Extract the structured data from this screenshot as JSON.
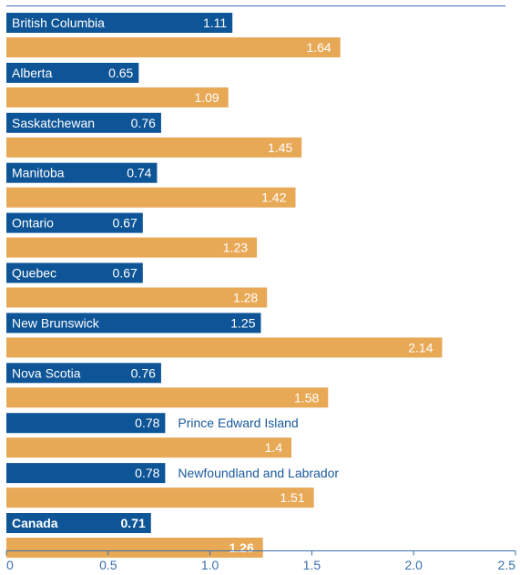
{
  "chart_data": {
    "type": "bar",
    "orientation": "horizontal",
    "categories": [
      "British Columbia",
      "Alberta",
      "Saskatchewan",
      "Manitoba",
      "Ontario",
      "Quebec",
      "New Brunswick",
      "Nova Scotia",
      "Prince Edward Island",
      "Newfoundland and Labrador",
      "Canada"
    ],
    "series": [
      {
        "values": [
          1.11,
          0.65,
          0.76,
          0.74,
          0.67,
          0.67,
          1.25,
          0.76,
          0.78,
          0.78,
          0.71
        ]
      },
      {
        "values": [
          1.64,
          1.09,
          1.45,
          1.42,
          1.23,
          1.28,
          2.14,
          1.58,
          1.4,
          1.51,
          1.26
        ]
      }
    ],
    "value_labels": [
      [
        "1.11",
        "0.65",
        "0.76",
        "0.74",
        "0.67",
        "0.67",
        "1.25",
        "0.76",
        "0.78",
        "0.78",
        "0.71"
      ],
      [
        "1.64",
        "1.09",
        "1.45",
        "1.42",
        "1.23",
        "1.28",
        "2.14",
        "1.58",
        "1.4",
        "1.51",
        "1.26"
      ]
    ],
    "xlim": [
      0,
      2.5
    ],
    "x_ticks": [
      "0",
      "0.5",
      "1.0",
      "1.5",
      "2.0",
      "2.5"
    ],
    "x_tick_values": [
      0,
      0.5,
      1.0,
      1.5,
      2.0,
      2.5
    ],
    "highlight_category": "Canada",
    "label_outside_bar": [
      "Prince Edward Island",
      "Newfoundland and Labrador"
    ],
    "title": "",
    "xlabel": "",
    "ylabel": "",
    "grid": false,
    "legend": "none",
    "colors": {
      "series_0": "#0e5597",
      "series_1": "#e8a957",
      "axis": "#3a6fae",
      "tick_text": "#3a6fae",
      "label_text": "#ffffff",
      "outside_label_text": "#1a5a9c"
    }
  }
}
